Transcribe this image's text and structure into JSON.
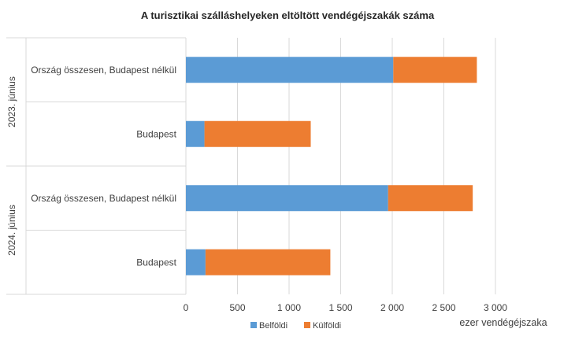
{
  "chart_data": {
    "type": "bar",
    "orientation": "horizontal",
    "stacked": true,
    "title": "A turisztikai szálláshelyeken eltöltött vendégéjszakák száma",
    "xlabel": "ezer vendégéjszaka",
    "xlim": [
      0,
      3000
    ],
    "xticks": [
      0,
      500,
      1000,
      1500,
      2000,
      2500,
      3000
    ],
    "xtick_labels": [
      "0",
      "500",
      "1 000",
      "1 500",
      "2 000",
      "2 500",
      "3 000"
    ],
    "grid": true,
    "legend_position": "bottom",
    "groups": [
      {
        "label": "2023. június",
        "categories": [
          "Ország összesen, Budapest nélkül",
          "Budapest"
        ]
      },
      {
        "label": "2024. június",
        "categories": [
          "Ország összesen, Budapest nélkül",
          "Budapest"
        ]
      }
    ],
    "series": [
      {
        "name": "Belföldi",
        "color": "#5b9bd5",
        "values": [
          2010,
          180,
          1960,
          190
        ]
      },
      {
        "name": "Külföldi",
        "color": "#ed7d31",
        "values": [
          810,
          1030,
          820,
          1210
        ]
      }
    ]
  }
}
